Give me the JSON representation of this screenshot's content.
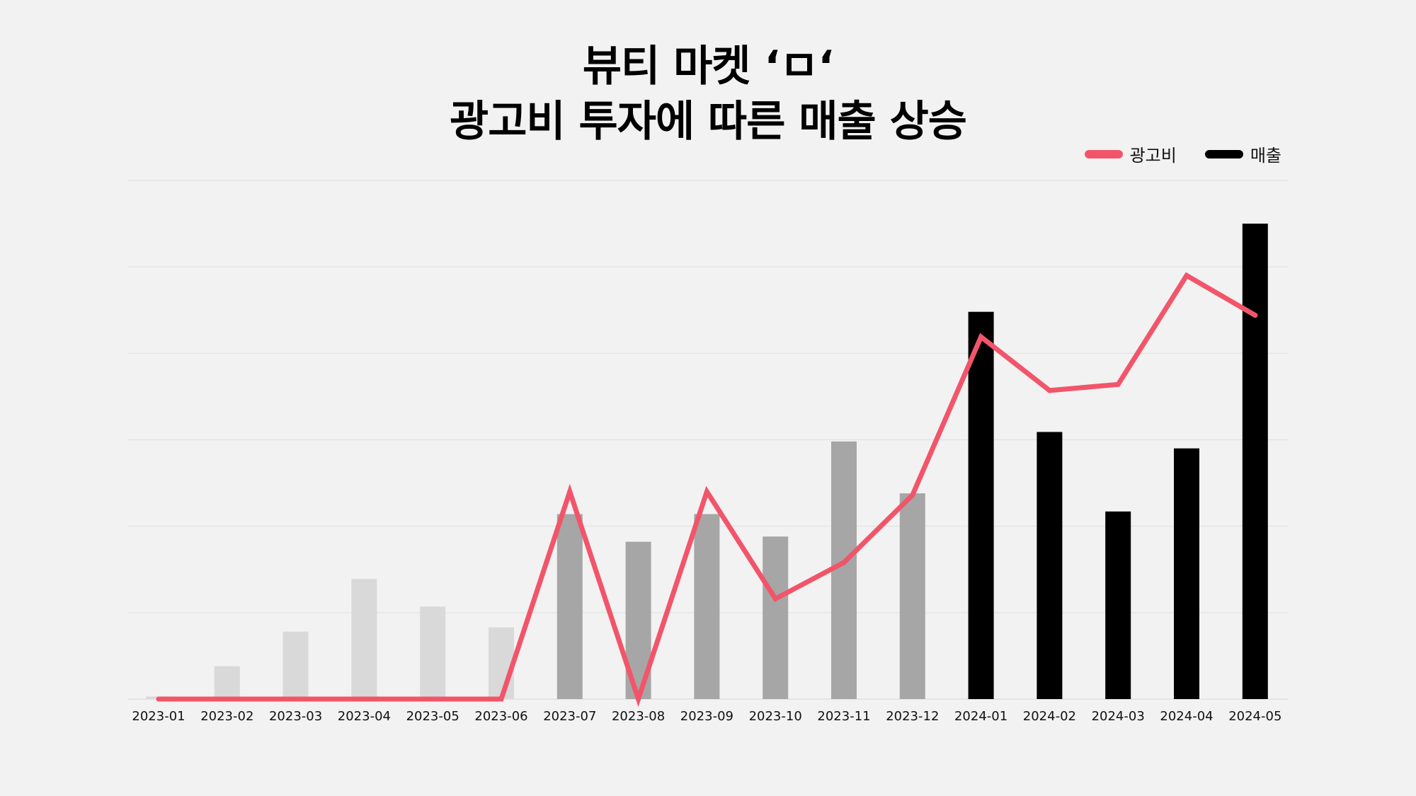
{
  "title": {
    "line1": "뷰티 마켓 ‘ㅁ‘",
    "line2": "광고비 투자에 따른 매출 상승"
  },
  "legend": [
    {
      "label": "광고비",
      "color": "#f2556a"
    },
    {
      "label": "매출",
      "color": "#000000"
    }
  ],
  "chart_data": {
    "type": "bar",
    "title": "뷰티 마켓 ‘ㅁ‘ 광고비 투자에 따른 매출 상승",
    "categories": [
      "2023-01",
      "2023-02",
      "2023-03",
      "2023-04",
      "2023-05",
      "2023-06",
      "2023-07",
      "2023-08",
      "2023-09",
      "2023-10",
      "2023-11",
      "2023-12",
      "2024-01",
      "2024-02",
      "2024-03",
      "2024-04",
      "2024-05"
    ],
    "ylim": [
      0,
      6
    ],
    "grid": true,
    "legend_position": "top-right",
    "series": [
      {
        "name": "매출",
        "type": "bar",
        "values": [
          0.03,
          0.38,
          0.78,
          1.39,
          1.07,
          0.83,
          2.14,
          1.82,
          2.14,
          1.88,
          2.98,
          2.38,
          4.48,
          3.09,
          2.17,
          2.9,
          5.5
        ],
        "colors": [
          "#d9d9d9",
          "#d9d9d9",
          "#d9d9d9",
          "#d9d9d9",
          "#d9d9d9",
          "#d9d9d9",
          "#a6a6a6",
          "#a6a6a6",
          "#a6a6a6",
          "#a6a6a6",
          "#a6a6a6",
          "#a6a6a6",
          "#000000",
          "#000000",
          "#000000",
          "#000000",
          "#000000"
        ]
      },
      {
        "name": "광고비",
        "type": "line",
        "color": "#f2556a",
        "values": [
          0,
          0,
          0,
          0,
          0,
          0,
          2.4,
          0,
          2.4,
          1.16,
          1.58,
          2.36,
          4.19,
          3.57,
          3.64,
          4.9,
          4.44
        ]
      }
    ]
  }
}
